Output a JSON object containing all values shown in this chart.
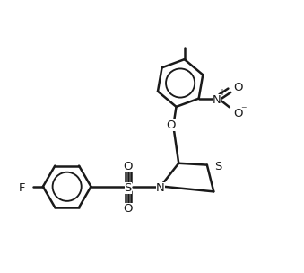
{
  "background_color": "#ffffff",
  "line_color": "#1a1a1a",
  "line_width": 1.8,
  "figsize": [
    3.39,
    3.04
  ],
  "dpi": 100,
  "xlim": [
    0,
    9
  ],
  "ylim": [
    0,
    8.1
  ]
}
